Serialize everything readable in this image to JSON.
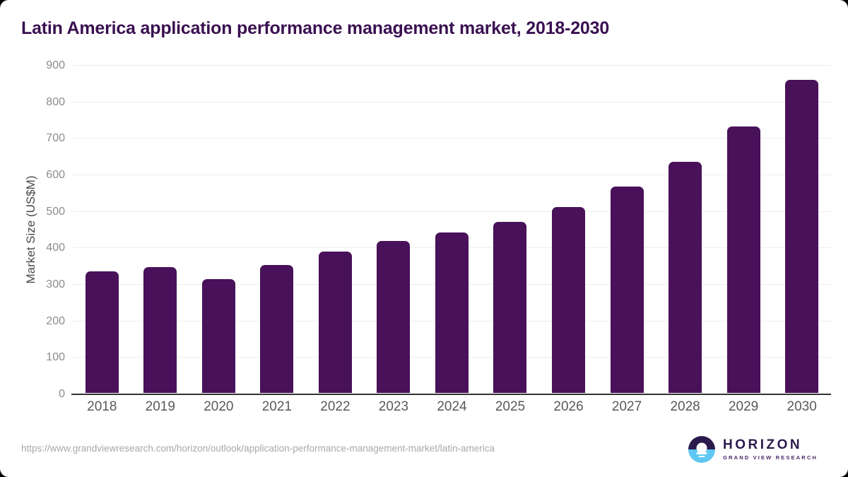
{
  "title": "Latin America application performance management market, 2018-2030",
  "source_url": "https://www.grandviewresearch.com/horizon/outlook/application-performance-management-market/latin-america",
  "logo": {
    "name": "HORIZON",
    "subtitle": "GRAND VIEW RESEARCH"
  },
  "colors": {
    "bar": "#481159",
    "title_text": "#3a1051",
    "grid": "#ededed",
    "axis_line": "#333333",
    "y_tick_label": "#8c8c8c",
    "x_tick_label": "#595959",
    "url_text": "#a8a8a8",
    "logo_navy": "#2b1b4d",
    "logo_blue": "#5ec7f2"
  },
  "chart_data": {
    "type": "bar",
    "title": "Latin America application performance management market, 2018-2030",
    "categories": [
      "2018",
      "2019",
      "2020",
      "2021",
      "2022",
      "2023",
      "2024",
      "2025",
      "2026",
      "2027",
      "2028",
      "2029",
      "2030"
    ],
    "values": [
      335,
      347,
      313,
      351,
      389,
      418,
      441,
      470,
      512,
      567,
      636,
      732,
      862
    ],
    "xlabel": "",
    "ylabel": "Market Size (US$M)",
    "ylim": [
      0,
      900
    ],
    "ytick_step": 100,
    "grid": "horizontal",
    "legend": "none",
    "bar_color": "#481159"
  }
}
